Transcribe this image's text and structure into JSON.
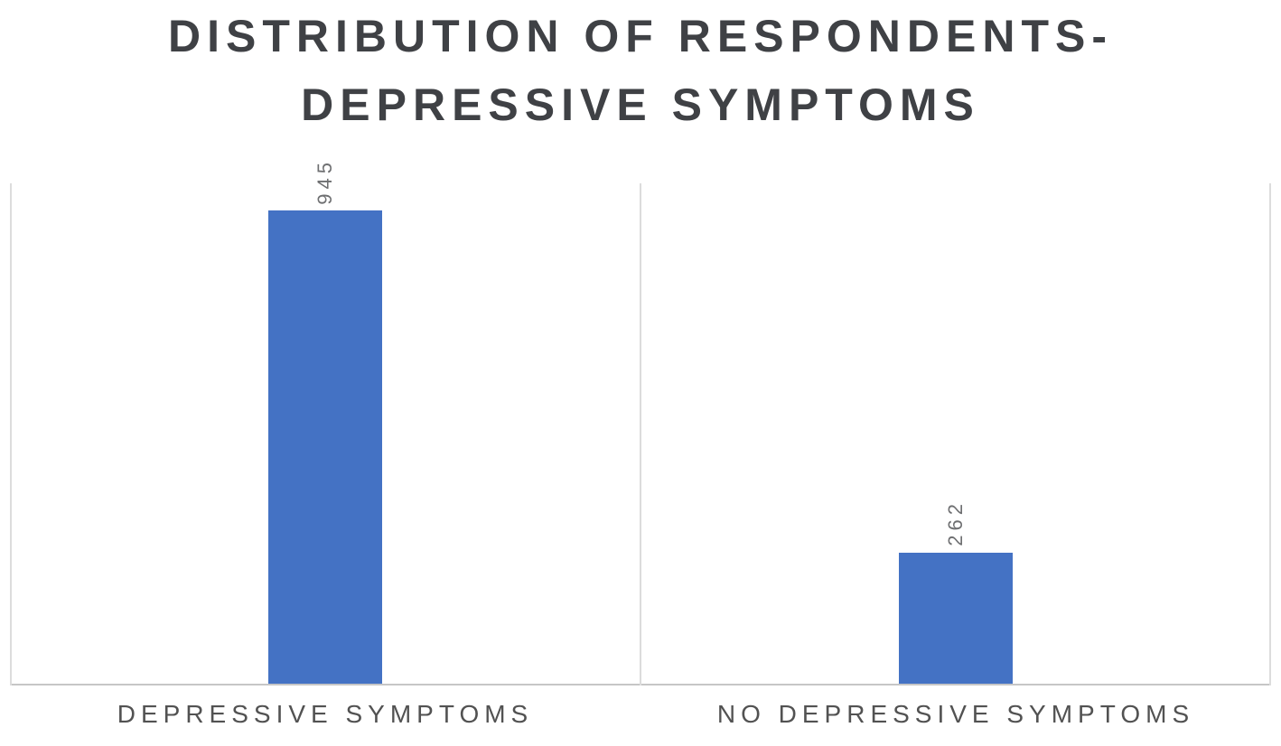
{
  "chart_data": {
    "type": "bar",
    "title": "DISTRIBUTION OF RESPONDENTS- DEPRESSIVE SYMPTOMS",
    "categories": [
      "DEPRESSIVE SYMPTOMS",
      "NO DEPRESSIVE SYMPTOMS"
    ],
    "values": [
      945,
      262
    ],
    "data_labels": [
      "945",
      "262"
    ],
    "xlabel": "",
    "ylabel": "",
    "ylim": [
      0,
      1000
    ],
    "legend": "none",
    "grid": "vertical category-boundary gridlines only",
    "data_label_rotation_deg": -90,
    "bar_color": "#4472c4"
  },
  "colors": {
    "background": "#ffffff",
    "bar": "#4472c4",
    "title_text": "#3f4145",
    "category_text": "#525252",
    "data_label_text": "#6e6f71",
    "gridline": "#dcdcdc",
    "axis_line": "#c6c6c6"
  }
}
